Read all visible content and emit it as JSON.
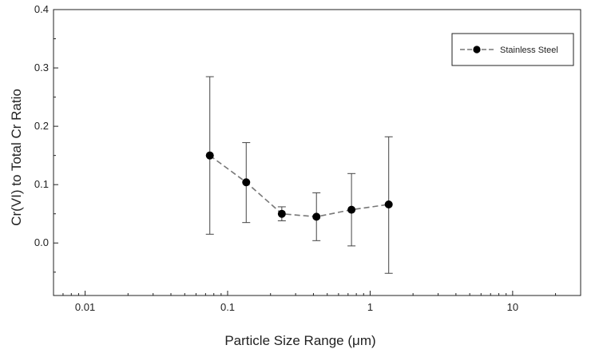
{
  "chart_data": {
    "type": "scatter",
    "xlabel": "Particle Size Range (μm)",
    "ylabel": "Cr(VI) to Total Cr Ratio",
    "x_scale": "log",
    "xlim": [
      0.006,
      30
    ],
    "ylim": [
      -0.09,
      0.4
    ],
    "x_ticks": [
      0.01,
      0.1,
      1,
      10
    ],
    "x_tick_labels": [
      "0.01",
      "0.1",
      "1",
      "10"
    ],
    "y_ticks": [
      0.0,
      0.1,
      0.2,
      0.3,
      0.4
    ],
    "y_tick_labels": [
      "0.0",
      "0.1",
      "0.2",
      "0.3",
      "0.4"
    ],
    "grid": false,
    "legend_position": "top-right",
    "series": [
      {
        "name": "Stainless Steel",
        "color": "#000000",
        "line_color": "#777777",
        "line_style": "dashed",
        "marker": "circle",
        "x": [
          0.075,
          0.135,
          0.24,
          0.42,
          0.74,
          1.35
        ],
        "y": [
          0.15,
          0.104,
          0.05,
          0.045,
          0.057,
          0.066
        ],
        "err_low": [
          0.015,
          0.035,
          0.038,
          0.004,
          -0.005,
          -0.052
        ],
        "err_high": [
          0.285,
          0.172,
          0.062,
          0.086,
          0.119,
          0.182
        ]
      }
    ]
  }
}
